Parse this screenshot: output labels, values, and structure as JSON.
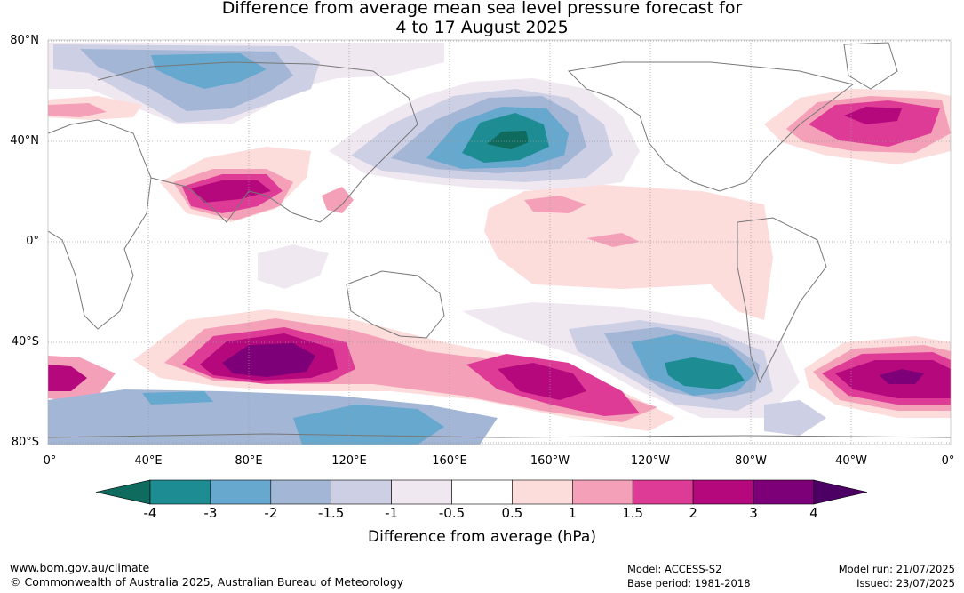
{
  "title": {
    "line1": "Difference from average mean sea level pressure forecast for",
    "line2": "4 to 17 August 2025"
  },
  "map": {
    "lat_labels": [
      "80°N",
      "40°N",
      "0°",
      "40°S",
      "80°S"
    ],
    "lon_labels": [
      "0°",
      "40°E",
      "80°E",
      "120°E",
      "160°E",
      "160°W",
      "120°W",
      "80°W",
      "40°W",
      "0°"
    ]
  },
  "colorbar": {
    "title": "Difference from average (hPa)",
    "tick_labels": [
      "-4",
      "-3",
      "-2",
      "-1.5",
      "-1",
      "-0.5",
      "0.5",
      "1",
      "1.5",
      "2",
      "3",
      "4"
    ],
    "colors": [
      "#0f6b5e",
      "#1e8c93",
      "#66a8ce",
      "#a3b6d6",
      "#cdcfe4",
      "#f0e8f1",
      "#ffffff",
      "#fddcdc",
      "#f5a0b9",
      "#de3b97",
      "#b5087d",
      "#7e0078",
      "#4c0064"
    ]
  },
  "footer": {
    "url": "www.bom.gov.au/climate",
    "copyright": "© Commonwealth of Australia 2025, Australian Bureau of Meteorology",
    "model": "Model: ACCESS-S2",
    "base_period": "Base period: 1981-2018",
    "model_run": "Model run: 21/07/2025",
    "issued": "Issued: 23/07/2025"
  }
}
